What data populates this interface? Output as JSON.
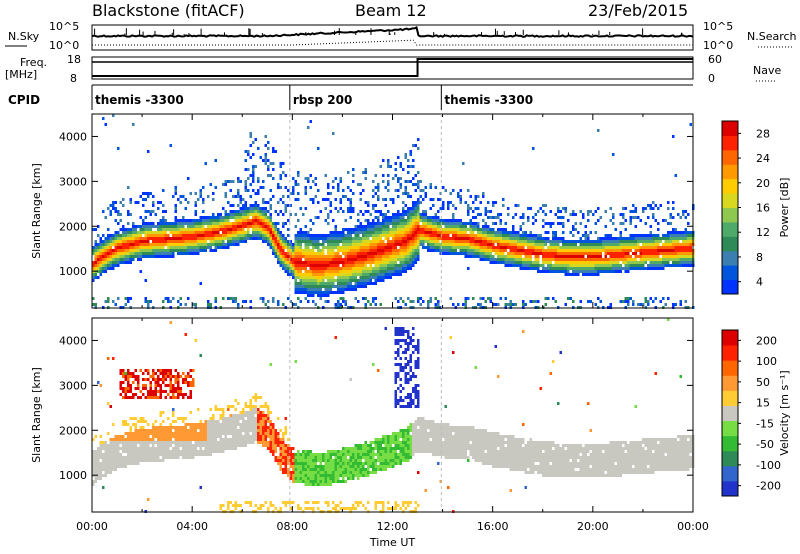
{
  "header": {
    "radar": "Blackstone (fitACF)",
    "beam": "Beam 12",
    "date": "23/Feb/2015"
  },
  "top_panels": {
    "nsky_label": "N.Sky",
    "nsearch_label": "N.Search",
    "nsky_ticks": [
      "10^5",
      "10^0"
    ],
    "nsearch_ticks": [
      "10^5",
      "10^0"
    ],
    "freq_label_1": "Freq.",
    "freq_label_2": "[MHz]",
    "freq_ticks": [
      "18",
      "8"
    ],
    "nave_label": "Nave",
    "nave_ticks": [
      "60",
      "0"
    ],
    "cpid_label": "CPID",
    "cpid_segments": [
      {
        "label": "themis -3300",
        "start": 0,
        "end": 7.9
      },
      {
        "label": "rbsp 200",
        "start": 7.9,
        "end": 13.95
      },
      {
        "label": "themis -3300",
        "start": 13.95,
        "end": 24
      }
    ]
  },
  "chart_data": [
    {
      "type": "heatmap",
      "name": "power",
      "ylabel": "Slant Range [km]",
      "xlabel": "Time UT",
      "xlim": [
        0,
        24
      ],
      "ylim": [
        180,
        4500
      ],
      "y_ticks": [
        "1000",
        "2000",
        "3000",
        "4000"
      ],
      "x_ticks": [
        "00:00",
        "04:00",
        "08:00",
        "12:00",
        "16:00",
        "20:00",
        "00:00"
      ],
      "colorbar": {
        "label": "Power [dB]",
        "ticks": [
          "28",
          "24",
          "20",
          "16",
          "12",
          "8",
          "4"
        ],
        "colors": [
          "#0033ff",
          "#0055dd",
          "#3a7fb0",
          "#2e8b57",
          "#4faa6a",
          "#8fc84f",
          "#d8d820",
          "#ffcc00",
          "#ff9900",
          "#ff6600",
          "#ff2200",
          "#dd0000"
        ]
      },
      "bands": [
        {
          "t": [
            0,
            0.5,
            1,
            2,
            3,
            4,
            5,
            6,
            6.5,
            7,
            7.5,
            8,
            9,
            10,
            11,
            12,
            12.5,
            13,
            14,
            15,
            16,
            17,
            18,
            19,
            20,
            21,
            22,
            23,
            24
          ],
          "center": [
            1200,
            1400,
            1550,
            1700,
            1750,
            1800,
            1900,
            2050,
            2150,
            2000,
            1500,
            1250,
            1150,
            1250,
            1400,
            1600,
            1700,
            1950,
            1800,
            1750,
            1600,
            1500,
            1400,
            1350,
            1350,
            1400,
            1450,
            1500,
            1550
          ]
        }
      ]
    },
    {
      "type": "heatmap",
      "name": "velocity",
      "ylabel": "Slant Range [km]",
      "xlabel": "Time UT",
      "xlim": [
        0,
        24
      ],
      "ylim": [
        180,
        4500
      ],
      "y_ticks": [
        "1000",
        "2000",
        "3000",
        "4000"
      ],
      "x_ticks": [
        "00:00",
        "04:00",
        "08:00",
        "12:00",
        "16:00",
        "20:00",
        "00:00"
      ],
      "colorbar": {
        "label": "Velocity [m s⁻¹]",
        "ticks": [
          "200",
          "100",
          "50",
          "15",
          "-15",
          "-50",
          "-100",
          "-200"
        ],
        "colors": [
          "#2233cc",
          "#3366cc",
          "#2e8b57",
          "#33bb33",
          "#77dd44",
          "#c8c8c0",
          "#ffcc33",
          "#ff9933",
          "#ff6600",
          "#ff2200",
          "#dd0000"
        ]
      }
    }
  ]
}
